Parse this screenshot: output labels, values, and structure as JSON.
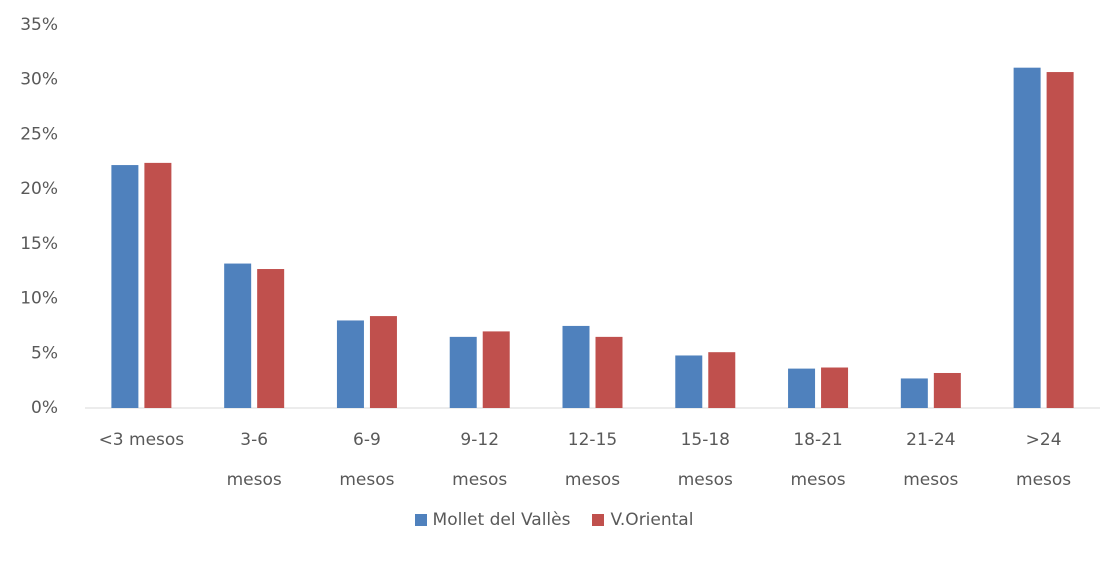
{
  "chart_data": {
    "type": "bar",
    "categories": [
      "<3 mesos",
      "3-6 mesos",
      "6-9 mesos",
      "9-12 mesos",
      "12-15 mesos",
      "15-18 mesos",
      "18-21 mesos",
      "21-24 mesos",
      ">24 mesos"
    ],
    "series": [
      {
        "name": "Mollet del Vallès",
        "color": "#4f81bd",
        "values": [
          22.2,
          13.2,
          8.0,
          6.5,
          7.5,
          4.8,
          3.6,
          2.7,
          31.1
        ]
      },
      {
        "name": "V.Oriental",
        "color": "#c0504d",
        "values": [
          22.4,
          12.7,
          8.4,
          7.0,
          6.5,
          5.1,
          3.7,
          3.2,
          30.7
        ]
      }
    ],
    "ylim": [
      0,
      35
    ],
    "yticks": [
      {
        "value": 0,
        "label": "0%"
      },
      {
        "value": 5,
        "label": "5%"
      },
      {
        "value": 10,
        "label": "10%"
      },
      {
        "value": 15,
        "label": "15%"
      },
      {
        "value": 20,
        "label": "20%"
      },
      {
        "value": 25,
        "label": "25%"
      },
      {
        "value": 30,
        "label": "30%"
      },
      {
        "value": 35,
        "label": "35%"
      }
    ],
    "grid": false,
    "legend": "bottom"
  }
}
